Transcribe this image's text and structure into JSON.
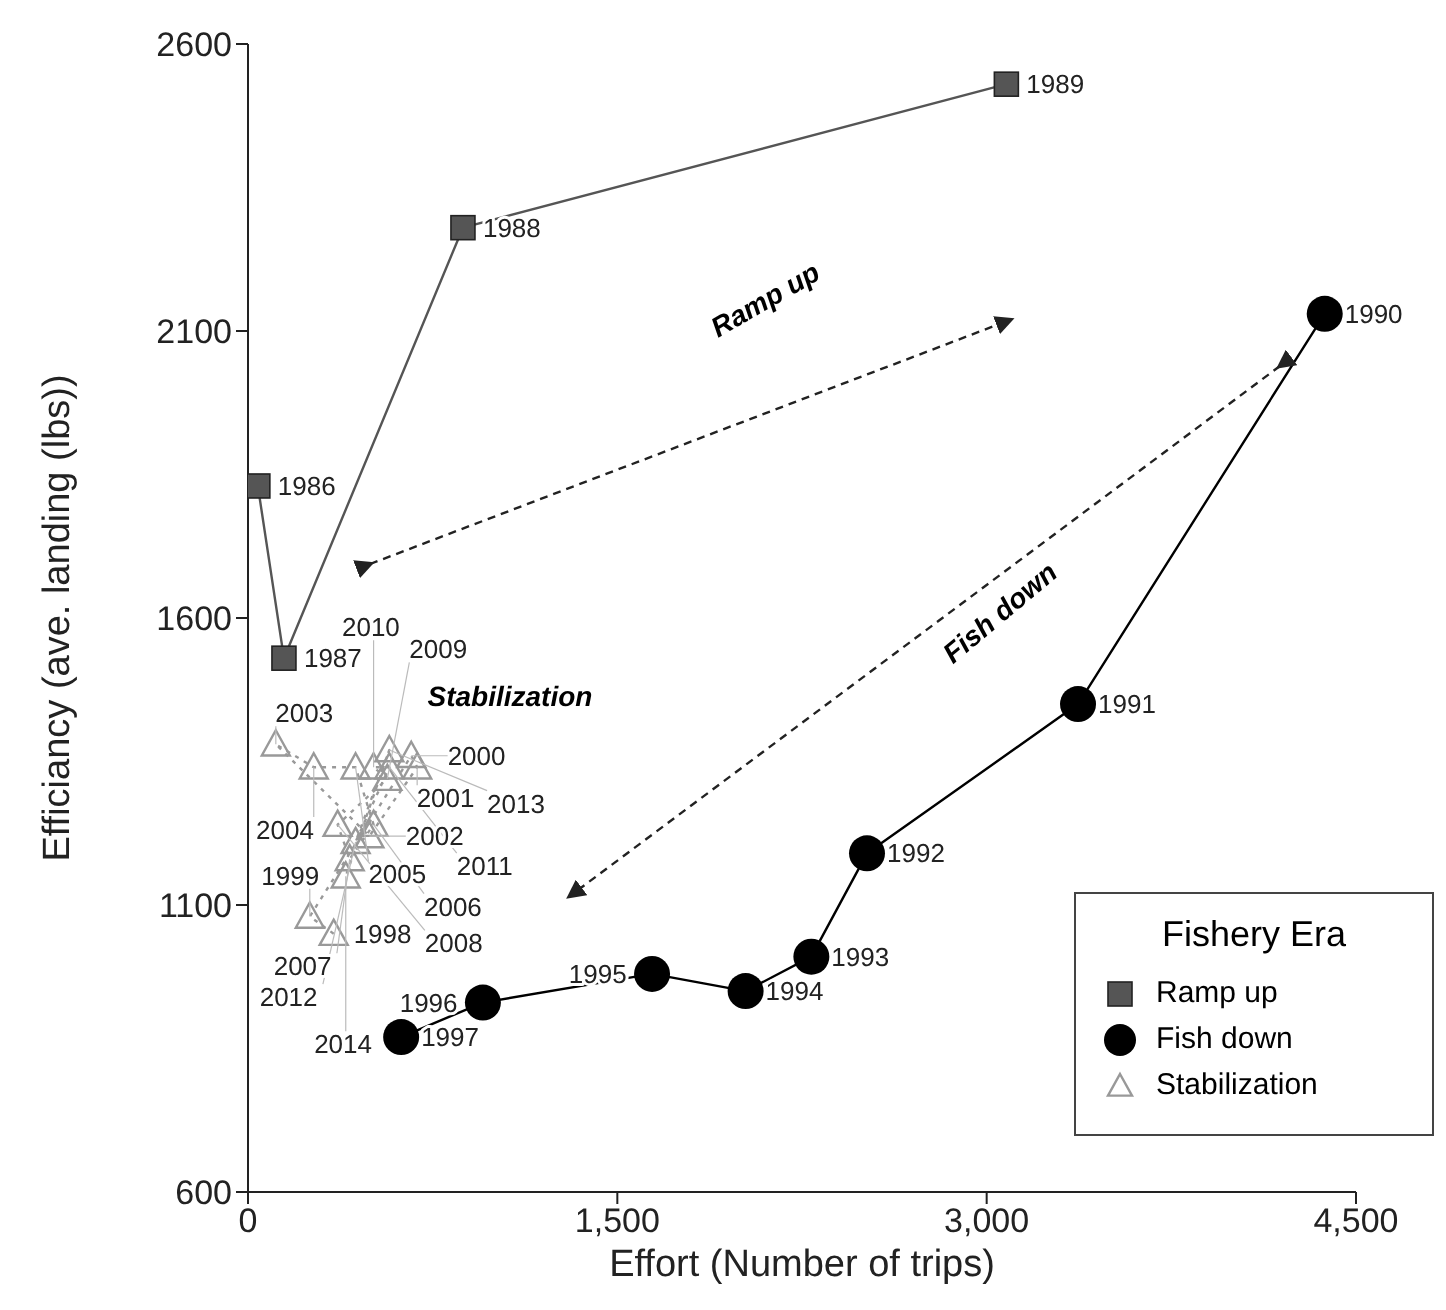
{
  "chart_data": {
    "type": "line",
    "xlabel": "Effort (Number of trips)",
    "ylabel": "Efficiancy (ave. landing (lbs))",
    "legend_title": "Fishery Era",
    "legend": "bottom right",
    "grid": false,
    "xlim": [
      0,
      4500
    ],
    "xticks": [
      0,
      {
        "value": 1500,
        "label": "1,500"
      },
      {
        "value": 3000,
        "label": "3,000"
      },
      {
        "value": 4500,
        "label": "4,500"
      }
    ],
    "ylim": [
      600,
      2600
    ],
    "yticks": [
      600,
      1100,
      1600,
      2100,
      2600
    ],
    "annotations": [
      "Ramp up",
      "Fish down",
      "Stabilization",
      {
        "text": "1986",
        "x": 40,
        "y": 1830
      },
      {
        "text": "1987",
        "x": 146,
        "y": 1530
      },
      {
        "text": "1988",
        "x": 873,
        "y": 2280
      },
      {
        "text": "1989",
        "x": 3080,
        "y": 2530
      },
      {
        "text": "1990",
        "x": 4373,
        "y": 2130
      },
      {
        "text": "1991",
        "x": 3371,
        "y": 1450
      },
      {
        "text": "1992",
        "x": 2514,
        "y": 1190
      },
      {
        "text": "1993",
        "x": 2288,
        "y": 1010
      },
      {
        "text": "1994",
        "x": 2021,
        "y": 950
      },
      {
        "text": "1995",
        "x": 1641,
        "y": 980
      },
      {
        "text": "1996",
        "x": 954,
        "y": 930
      },
      {
        "text": "1997",
        "x": 622,
        "y": 870
      },
      {
        "text": "1998",
        "x": 348,
        "y": 1050
      },
      {
        "text": "1999",
        "x": 251,
        "y": 1080
      },
      {
        "text": "2000",
        "x": 663,
        "y": 1360
      },
      {
        "text": "2001",
        "x": 687,
        "y": 1340
      },
      {
        "text": "2002",
        "x": 493,
        "y": 1220
      },
      {
        "text": "2003",
        "x": 113,
        "y": 1380
      },
      {
        "text": "2004",
        "x": 267,
        "y": 1340
      },
      {
        "text": "2005",
        "x": 437,
        "y": 1340
      },
      {
        "text": "2006",
        "x": 510,
        "y": 1240
      },
      {
        "text": "2007",
        "x": 413,
        "y": 1180
      },
      {
        "text": "2008",
        "x": 364,
        "y": 1240
      },
      {
        "text": "2009",
        "x": 566,
        "y": 1320
      },
      {
        "text": "2010",
        "x": 510,
        "y": 1340
      },
      {
        "text": "2011",
        "x": 574,
        "y": 1340
      },
      {
        "text": "2012",
        "x": 437,
        "y": 1210
      },
      {
        "text": "2013",
        "x": 574,
        "y": 1370
      },
      {
        "text": "2014",
        "x": 397,
        "y": 1150
      }
    ],
    "series": [
      {
        "name": "Ramp up",
        "color": "#555555",
        "marker": "square",
        "line_style": "solid",
        "x": [
          40,
          146,
          873,
          3080
        ],
        "values": [
          1830,
          1530,
          2280,
          2530
        ]
      },
      {
        "name": "Fish down",
        "color": "#000000",
        "marker": "circle",
        "line_style": "solid",
        "x": [
          4373,
          3371,
          2514,
          2288,
          2021,
          1641,
          954,
          622
        ],
        "values": [
          2130,
          1450,
          1190,
          1010,
          950,
          980,
          930,
          870
        ]
      },
      {
        "name": "Stabilization",
        "color": "#999999",
        "marker": "triangle",
        "line_style": "dotted",
        "x": [
          348,
          251,
          663,
          687,
          493,
          113,
          267,
          437,
          510,
          413,
          364,
          566,
          510,
          574,
          437,
          574,
          397
        ],
        "values": [
          1050,
          1080,
          1360,
          1340,
          1220,
          1380,
          1340,
          1340,
          1240,
          1180,
          1240,
          1320,
          1340,
          1340,
          1210,
          1370,
          1150
        ]
      }
    ]
  }
}
